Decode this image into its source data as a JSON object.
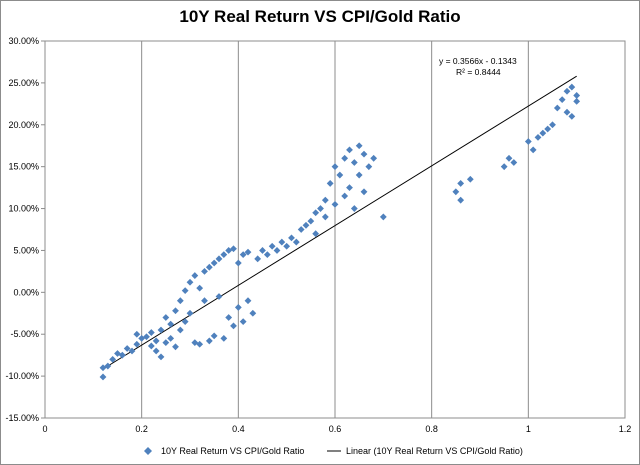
{
  "chart_data": {
    "type": "scatter",
    "title": "10Y Real Return VS CPI/Gold Ratio",
    "xlabel": "",
    "ylabel": "",
    "xlim": [
      0,
      1.2
    ],
    "ylim": [
      -0.15,
      0.3
    ],
    "x_ticks": [
      0,
      0.2,
      0.4,
      0.6,
      0.8,
      1,
      1.2
    ],
    "x_tick_labels": [
      "0",
      "0.2",
      "0.4",
      "0.6",
      "0.8",
      "1",
      "1.2"
    ],
    "y_ticks": [
      -0.15,
      -0.1,
      -0.05,
      0.0,
      0.05,
      0.1,
      0.15,
      0.2,
      0.25,
      0.3
    ],
    "y_tick_labels": [
      "-15.00%",
      "-10.00%",
      "-5.00%",
      "0.00%",
      "5.00%",
      "10.00%",
      "15.00%",
      "20.00%",
      "25.00%",
      "30.00%"
    ],
    "grid": "vertical",
    "legend_position": "bottom",
    "series_color": "#4f81bd",
    "trendline_color": "#000000",
    "series": [
      {
        "name": "10Y Real Return VS CPI/Gold Ratio",
        "marker": "diamond",
        "points": [
          [
            0.12,
            -0.09
          ],
          [
            0.12,
            -0.101
          ],
          [
            0.13,
            -0.088
          ],
          [
            0.14,
            -0.08
          ],
          [
            0.15,
            -0.073
          ],
          [
            0.16,
            -0.075
          ],
          [
            0.17,
            -0.067
          ],
          [
            0.18,
            -0.07
          ],
          [
            0.19,
            -0.05
          ],
          [
            0.19,
            -0.062
          ],
          [
            0.2,
            -0.055
          ],
          [
            0.21,
            -0.053
          ],
          [
            0.22,
            -0.048
          ],
          [
            0.22,
            -0.064
          ],
          [
            0.23,
            -0.07
          ],
          [
            0.23,
            -0.058
          ],
          [
            0.24,
            -0.077
          ],
          [
            0.24,
            -0.045
          ],
          [
            0.25,
            -0.06
          ],
          [
            0.25,
            -0.03
          ],
          [
            0.26,
            -0.038
          ],
          [
            0.26,
            -0.055
          ],
          [
            0.27,
            -0.022
          ],
          [
            0.27,
            -0.065
          ],
          [
            0.28,
            -0.01
          ],
          [
            0.28,
            -0.045
          ],
          [
            0.29,
            0.002
          ],
          [
            0.29,
            -0.035
          ],
          [
            0.3,
            0.012
          ],
          [
            0.3,
            -0.025
          ],
          [
            0.31,
            0.02
          ],
          [
            0.31,
            -0.06
          ],
          [
            0.32,
            0.005
          ],
          [
            0.32,
            -0.062
          ],
          [
            0.33,
            0.025
          ],
          [
            0.33,
            -0.01
          ],
          [
            0.34,
            -0.058
          ],
          [
            0.34,
            0.03
          ],
          [
            0.35,
            0.035
          ],
          [
            0.35,
            -0.052
          ],
          [
            0.36,
            0.04
          ],
          [
            0.36,
            -0.005
          ],
          [
            0.37,
            0.045
          ],
          [
            0.37,
            -0.055
          ],
          [
            0.38,
            0.05
          ],
          [
            0.38,
            -0.03
          ],
          [
            0.39,
            0.052
          ],
          [
            0.39,
            -0.04
          ],
          [
            0.4,
            0.035
          ],
          [
            0.4,
            -0.018
          ],
          [
            0.41,
            0.045
          ],
          [
            0.41,
            -0.035
          ],
          [
            0.42,
            0.048
          ],
          [
            0.42,
            -0.01
          ],
          [
            0.43,
            -0.025
          ],
          [
            0.44,
            0.04
          ],
          [
            0.45,
            0.05
          ],
          [
            0.46,
            0.045
          ],
          [
            0.47,
            0.055
          ],
          [
            0.48,
            0.05
          ],
          [
            0.49,
            0.06
          ],
          [
            0.5,
            0.055
          ],
          [
            0.51,
            0.065
          ],
          [
            0.52,
            0.06
          ],
          [
            0.53,
            0.075
          ],
          [
            0.54,
            0.08
          ],
          [
            0.55,
            0.085
          ],
          [
            0.56,
            0.095
          ],
          [
            0.56,
            0.07
          ],
          [
            0.57,
            0.1
          ],
          [
            0.58,
            0.11
          ],
          [
            0.58,
            0.09
          ],
          [
            0.59,
            0.13
          ],
          [
            0.6,
            0.15
          ],
          [
            0.6,
            0.105
          ],
          [
            0.61,
            0.14
          ],
          [
            0.62,
            0.16
          ],
          [
            0.62,
            0.115
          ],
          [
            0.63,
            0.17
          ],
          [
            0.63,
            0.125
          ],
          [
            0.64,
            0.155
          ],
          [
            0.64,
            0.1
          ],
          [
            0.65,
            0.175
          ],
          [
            0.65,
            0.14
          ],
          [
            0.66,
            0.165
          ],
          [
            0.66,
            0.12
          ],
          [
            0.67,
            0.15
          ],
          [
            0.68,
            0.16
          ],
          [
            0.7,
            0.09
          ],
          [
            0.85,
            0.12
          ],
          [
            0.86,
            0.11
          ],
          [
            0.86,
            0.13
          ],
          [
            0.88,
            0.135
          ],
          [
            0.95,
            0.15
          ],
          [
            0.96,
            0.16
          ],
          [
            0.97,
            0.155
          ],
          [
            1.0,
            0.18
          ],
          [
            1.01,
            0.17
          ],
          [
            1.02,
            0.185
          ],
          [
            1.03,
            0.19
          ],
          [
            1.04,
            0.195
          ],
          [
            1.05,
            0.2
          ],
          [
            1.06,
            0.22
          ],
          [
            1.07,
            0.23
          ],
          [
            1.08,
            0.215
          ],
          [
            1.08,
            0.24
          ],
          [
            1.09,
            0.245
          ],
          [
            1.09,
            0.21
          ],
          [
            1.1,
            0.235
          ],
          [
            1.1,
            0.228
          ]
        ]
      },
      {
        "name": "Linear (10Y Real Return VS CPI/Gold Ratio)",
        "type": "trendline",
        "slope": 0.3566,
        "intercept": -0.1343,
        "x_range": [
          0.12,
          1.1
        ]
      }
    ],
    "annotations": [
      "y = 0.3566x - 0.1343",
      "R² = 0.8444"
    ]
  }
}
